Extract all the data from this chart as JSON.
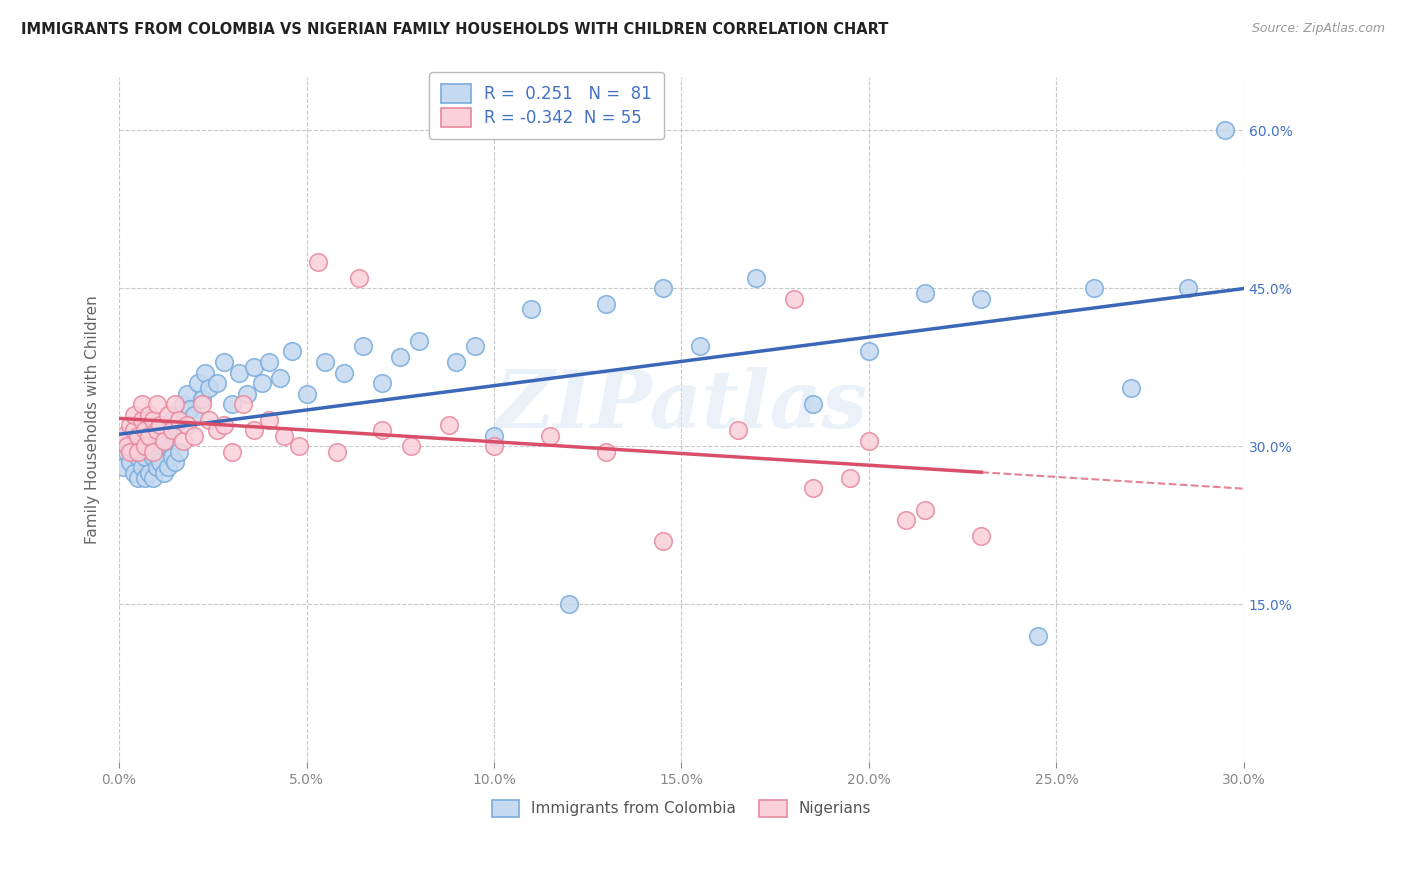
{
  "title": "IMMIGRANTS FROM COLOMBIA VS NIGERIAN FAMILY HOUSEHOLDS WITH CHILDREN CORRELATION CHART",
  "source": "Source: ZipAtlas.com",
  "ylabel": "Family Households with Children",
  "legend_label1": "Immigrants from Colombia",
  "legend_label2": "Nigerians",
  "R1": 0.251,
  "N1": 81,
  "R2": -0.342,
  "N2": 55,
  "xlim": [
    0.0,
    0.3
  ],
  "ylim": [
    0.0,
    0.65
  ],
  "xtick_labels": [
    "0.0%",
    "5.0%",
    "10.0%",
    "15.0%",
    "20.0%",
    "25.0%",
    "30.0%"
  ],
  "xtick_values": [
    0.0,
    0.05,
    0.1,
    0.15,
    0.2,
    0.25,
    0.3
  ],
  "ytick_labels": [
    "15.0%",
    "30.0%",
    "45.0%",
    "60.0%"
  ],
  "ytick_values": [
    0.15,
    0.3,
    0.45,
    0.6
  ],
  "watermark": "ZIPatlas",
  "color_blue_fill": "#c5d9f0",
  "color_blue_edge": "#7aacdc",
  "color_pink_fill": "#fad0da",
  "color_pink_edge": "#e88aa0",
  "line_blue": "#3a67b8",
  "line_pink": "#d94f6a",
  "background": "#ffffff",
  "grid_color": "#c8c8c8",
  "colombia_x": [
    0.001,
    0.002,
    0.002,
    0.003,
    0.003,
    0.004,
    0.004,
    0.004,
    0.005,
    0.005,
    0.005,
    0.006,
    0.006,
    0.006,
    0.007,
    0.007,
    0.007,
    0.008,
    0.008,
    0.008,
    0.009,
    0.009,
    0.009,
    0.01,
    0.01,
    0.01,
    0.011,
    0.011,
    0.012,
    0.012,
    0.013,
    0.013,
    0.014,
    0.014,
    0.015,
    0.015,
    0.016,
    0.016,
    0.017,
    0.018,
    0.019,
    0.02,
    0.021,
    0.022,
    0.023,
    0.024,
    0.026,
    0.028,
    0.03,
    0.032,
    0.034,
    0.036,
    0.038,
    0.04,
    0.043,
    0.046,
    0.05,
    0.055,
    0.06,
    0.065,
    0.07,
    0.075,
    0.08,
    0.09,
    0.095,
    0.1,
    0.11,
    0.12,
    0.13,
    0.145,
    0.155,
    0.17,
    0.185,
    0.2,
    0.215,
    0.23,
    0.245,
    0.26,
    0.27,
    0.285,
    0.295
  ],
  "colombia_y": [
    0.28,
    0.295,
    0.31,
    0.285,
    0.3,
    0.275,
    0.295,
    0.31,
    0.27,
    0.29,
    0.305,
    0.28,
    0.295,
    0.315,
    0.27,
    0.29,
    0.31,
    0.275,
    0.295,
    0.315,
    0.27,
    0.29,
    0.315,
    0.28,
    0.3,
    0.32,
    0.285,
    0.31,
    0.275,
    0.305,
    0.28,
    0.315,
    0.29,
    0.325,
    0.285,
    0.32,
    0.295,
    0.33,
    0.34,
    0.35,
    0.335,
    0.33,
    0.36,
    0.345,
    0.37,
    0.355,
    0.36,
    0.38,
    0.34,
    0.37,
    0.35,
    0.375,
    0.36,
    0.38,
    0.365,
    0.39,
    0.35,
    0.38,
    0.37,
    0.395,
    0.36,
    0.385,
    0.4,
    0.38,
    0.395,
    0.31,
    0.43,
    0.15,
    0.435,
    0.45,
    0.395,
    0.46,
    0.34,
    0.39,
    0.445,
    0.44,
    0.12,
    0.45,
    0.355,
    0.45,
    0.6
  ],
  "nigerian_x": [
    0.001,
    0.002,
    0.003,
    0.003,
    0.004,
    0.004,
    0.005,
    0.005,
    0.006,
    0.006,
    0.007,
    0.007,
    0.008,
    0.008,
    0.009,
    0.009,
    0.01,
    0.01,
    0.011,
    0.012,
    0.013,
    0.014,
    0.015,
    0.016,
    0.017,
    0.018,
    0.02,
    0.022,
    0.024,
    0.026,
    0.028,
    0.03,
    0.033,
    0.036,
    0.04,
    0.044,
    0.048,
    0.053,
    0.058,
    0.064,
    0.07,
    0.078,
    0.088,
    0.1,
    0.115,
    0.13,
    0.145,
    0.165,
    0.185,
    0.2,
    0.215,
    0.23,
    0.18,
    0.195,
    0.21
  ],
  "nigerian_y": [
    0.31,
    0.3,
    0.32,
    0.295,
    0.315,
    0.33,
    0.31,
    0.295,
    0.325,
    0.34,
    0.315,
    0.3,
    0.33,
    0.31,
    0.295,
    0.325,
    0.315,
    0.34,
    0.32,
    0.305,
    0.33,
    0.315,
    0.34,
    0.325,
    0.305,
    0.32,
    0.31,
    0.34,
    0.325,
    0.315,
    0.32,
    0.295,
    0.34,
    0.315,
    0.325,
    0.31,
    0.3,
    0.475,
    0.295,
    0.46,
    0.315,
    0.3,
    0.32,
    0.3,
    0.31,
    0.295,
    0.21,
    0.315,
    0.26,
    0.305,
    0.24,
    0.215,
    0.44,
    0.27,
    0.23
  ]
}
